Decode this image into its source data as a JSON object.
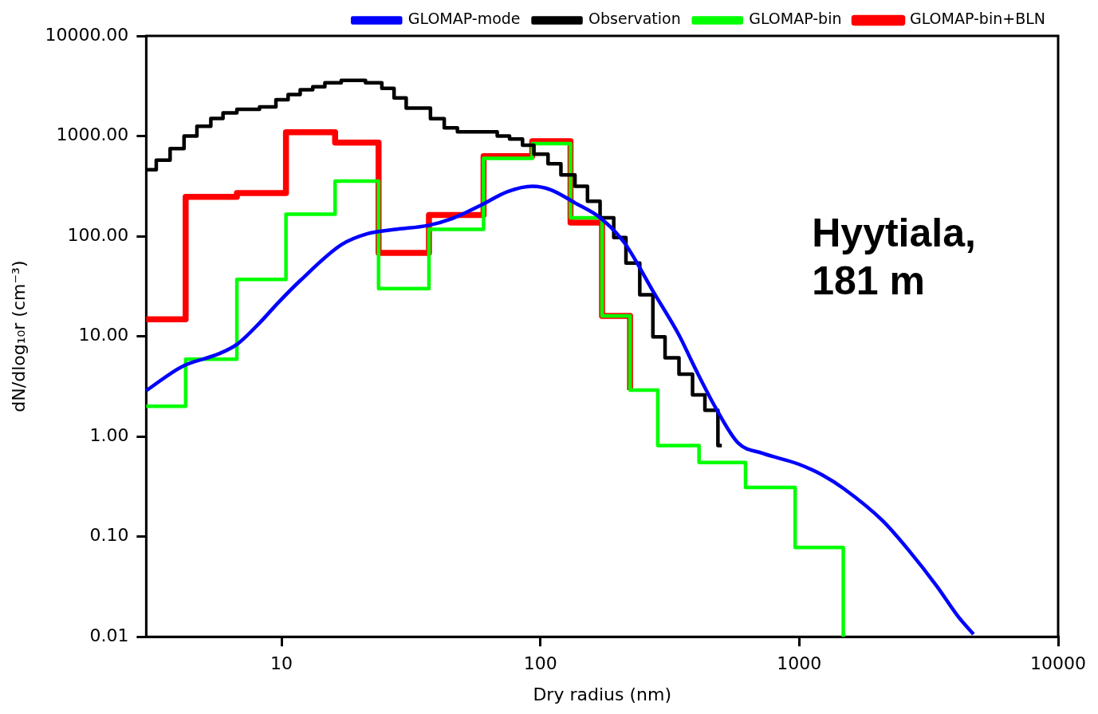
{
  "chart_data": {
    "type": "step",
    "xlabel": "Dry radius (nm)",
    "ylabel": "dN/dlog₁₀r (cm⁻³)",
    "log": "xy",
    "grid": false,
    "legend": "top right",
    "xlim": [
      3,
      10000
    ],
    "xticks": [
      10,
      100,
      1000,
      10000
    ],
    "ylim": [
      0.01,
      10000
    ],
    "yticks": [
      {
        "value": 0.01,
        "label": "0.01"
      },
      {
        "value": 0.1,
        "label": "0.10"
      },
      {
        "value": 1,
        "label": "1.00"
      },
      {
        "value": 10,
        "label": "10.00"
      },
      {
        "value": 100,
        "label": "100.00"
      },
      {
        "value": 1000,
        "label": "1000.00"
      },
      {
        "value": 10000,
        "label": "10000.00"
      }
    ],
    "annotations": [
      "Hyytiala,\n181 m"
    ],
    "series": [
      {
        "name": "Observation",
        "color": "#000000",
        "x": [
          3.0,
          3.28,
          3.71,
          4.2,
          4.71,
          5.33,
          5.94,
          6.72,
          8.22,
          9.51,
          10.6,
          11.8,
          13.2,
          14.7,
          17.0,
          18.9,
          21.1,
          24.4,
          27.2,
          30.3,
          37.6,
          42.5,
          47.8,
          68.1,
          76,
          85.3,
          94.4,
          107,
          120,
          136,
          152,
          170,
          192,
          214,
          242,
          272,
          303,
          343,
          387,
          432,
          485,
          502
        ],
        "values": [
          460,
          575,
          750,
          1000,
          1250,
          1500,
          1700,
          1850,
          1950,
          2300,
          2600,
          2900,
          3100,
          3400,
          3600,
          3600,
          3400,
          3000,
          2400,
          1900,
          1490,
          1210,
          1100,
          1000,
          935,
          810,
          660,
          530,
          410,
          315,
          223,
          153,
          97,
          54,
          26,
          9.9,
          6.1,
          4.2,
          2.6,
          1.83,
          0.81,
          0.81
        ]
      },
      {
        "name": "GLOMAP-bin",
        "color": "#00ff00",
        "x": [
          3.0,
          4.26,
          6.72,
          10.4,
          16.1,
          23.7,
          37.1,
          60.3,
          93.0,
          130.7,
          173,
          222,
          284,
          410,
          620,
          964,
          1479
        ],
        "values": [
          2.0,
          5.9,
          37,
          166,
          355,
          30,
          117,
          600,
          840,
          153,
          16,
          2.9,
          0.81,
          0.55,
          0.31,
          0.078,
          0.01
        ]
      },
      {
        "name": "GLOMAP-bin+BLN",
        "color": "#ff0000",
        "x": [
          3.0,
          4.26,
          6.72,
          10.4,
          16.1,
          23.7,
          37.1,
          60.3,
          93.0,
          130.7,
          173,
          222
        ],
        "values": [
          14.8,
          247,
          270,
          1090,
          860,
          68,
          163,
          630,
          890,
          137,
          16,
          2.9
        ]
      },
      {
        "name": "GLOMAP-mode",
        "color": "#0000ff",
        "type": "line",
        "x": [
          3.0,
          4.13,
          5.73,
          6.76,
          8.22,
          9.71,
          11.8,
          17.0,
          21.5,
          27.5,
          36.8,
          45.7,
          58.9,
          74.8,
          93.0,
          110,
          136,
          170,
          211,
          275,
          343,
          396,
          481,
          581,
          721,
          993,
          1233,
          1489,
          2094,
          2660,
          3400,
          4105,
          4710
        ],
        "values": [
          2.87,
          5.0,
          6.7,
          8.4,
          13.6,
          21.7,
          36,
          82,
          106,
          117,
          128,
          150,
          204,
          279,
          315,
          290,
          215,
          153,
          86,
          27,
          10.3,
          4.8,
          1.83,
          0.86,
          0.68,
          0.53,
          0.41,
          0.3,
          0.145,
          0.072,
          0.032,
          0.016,
          0.0106
        ]
      }
    ]
  }
}
